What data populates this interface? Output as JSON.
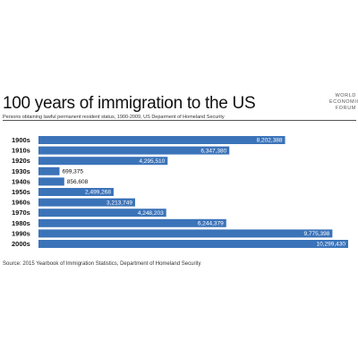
{
  "header": {
    "title": "100 years of immigration to the US",
    "subtitle": "Persons obtaining lawful permanent resident status, 1900-2009, US Deparment of Homeland Security",
    "logo_lines": [
      "WORLD",
      "ECONOMIC",
      "FORUM"
    ]
  },
  "footer": {
    "source": "Source: 2015 Yearbook of Immigration Statistics, Department of Homeland Security"
  },
  "colors": {
    "bar": "#3b73b9",
    "bar_label": "#ffffff",
    "outside_label": "#111111"
  },
  "chart_data": {
    "type": "bar",
    "orientation": "horizontal",
    "title": "100 years of immigration to the US",
    "subtitle": "Persons obtaining lawful permanent resident status, 1900-2009, US Deparment of Homeland Security",
    "categories": [
      "1900s",
      "1910s",
      "1920s",
      "1930s",
      "1940s",
      "1950s",
      "1960s",
      "1970s",
      "1980s",
      "1990s",
      "2000s"
    ],
    "values": [
      8202388,
      6347380,
      4295510,
      699375,
      856608,
      2499268,
      3213749,
      4248203,
      6244379,
      9775398,
      10299430
    ],
    "value_labels": [
      "8,202,388",
      "6,347,380",
      "4,295,510",
      "699,375",
      "856,608",
      "2,499,268",
      "3,213,749",
      "4,248,203",
      "6,244,379",
      "9,775,398",
      "10,299,430"
    ],
    "xlim": [
      0,
      10299430
    ],
    "grid": false,
    "legend": "none"
  }
}
